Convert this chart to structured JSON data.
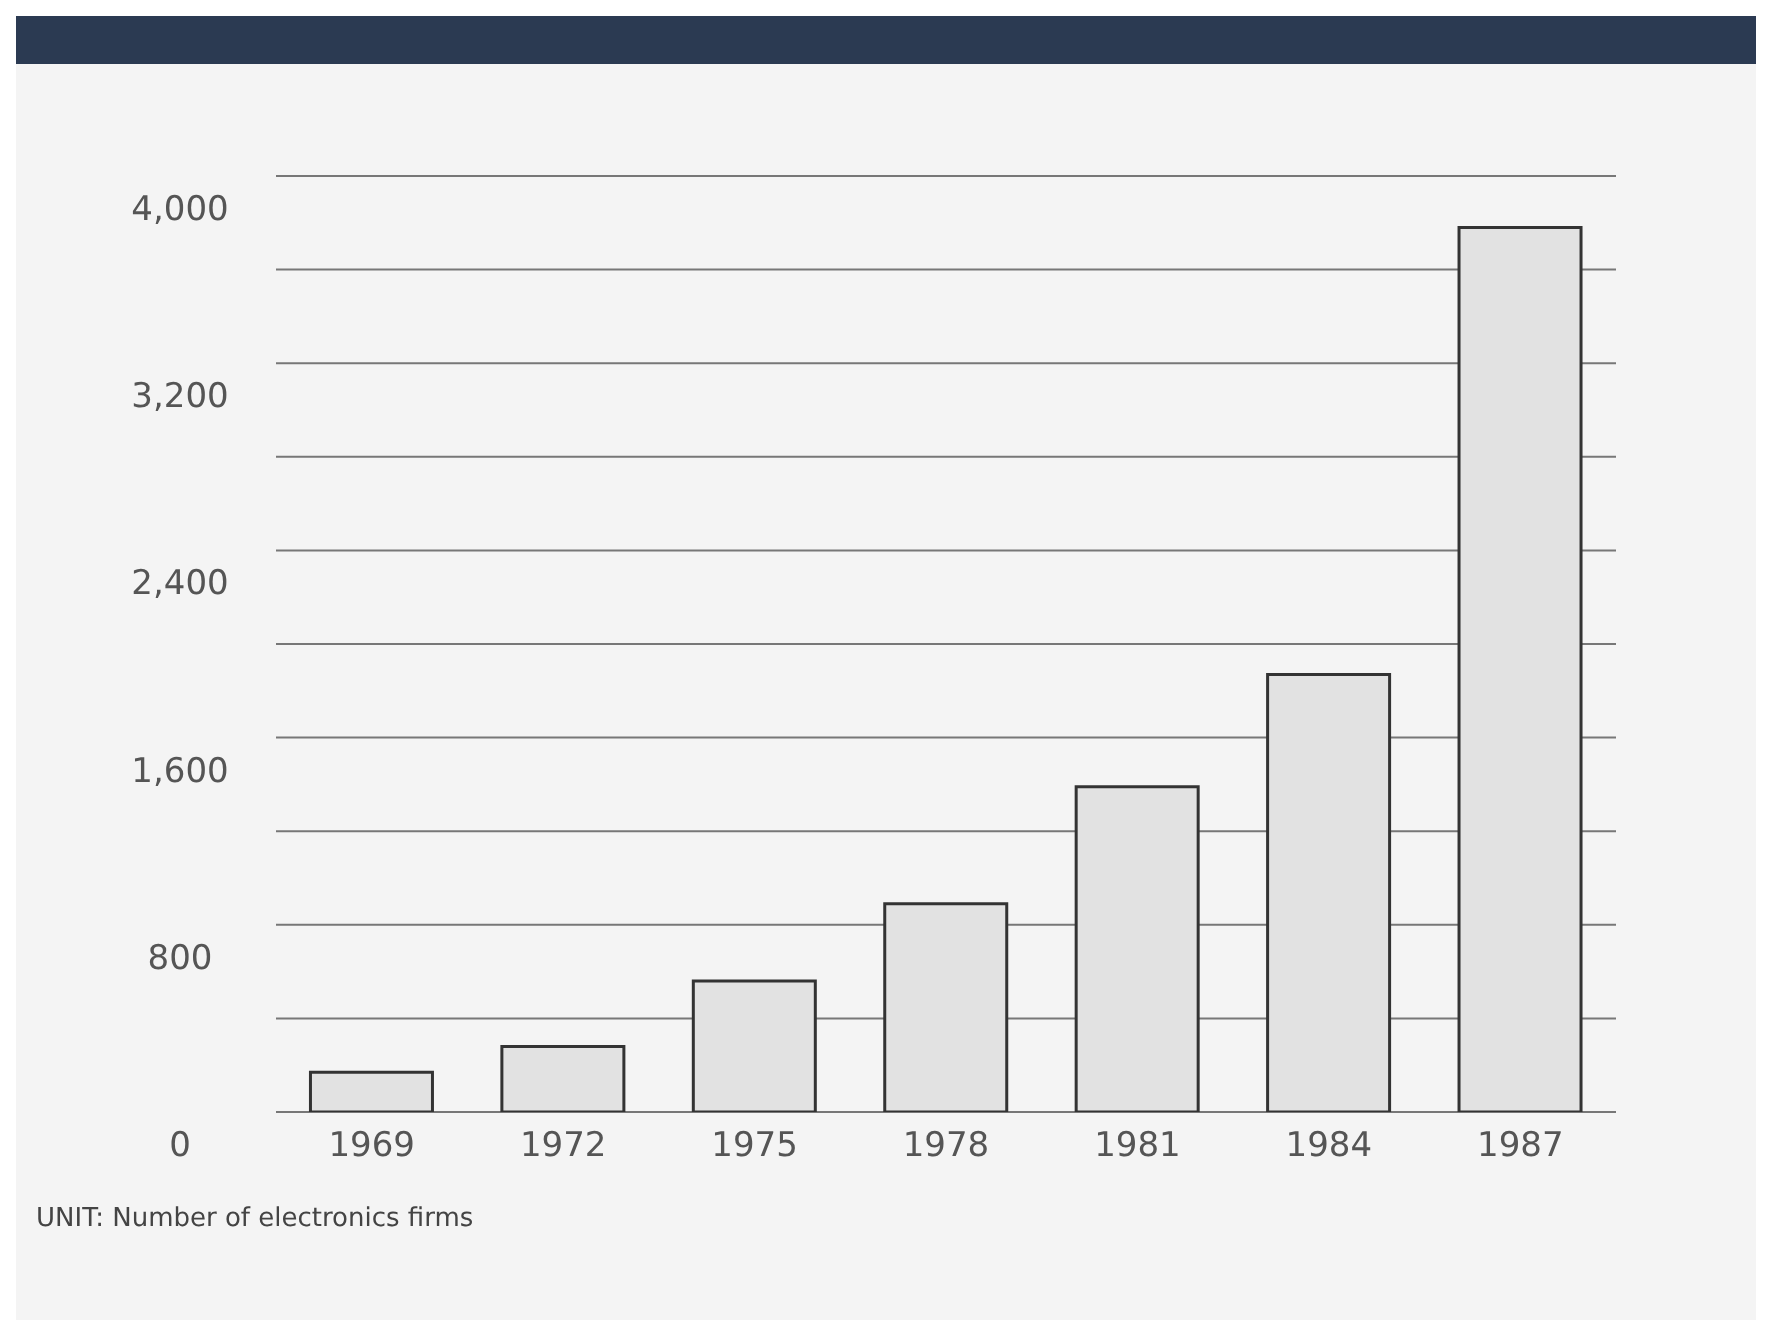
{
  "chart_data": {
    "type": "bar",
    "categories": [
      "1969",
      "1972",
      "1975",
      "1978",
      "1981",
      "1984",
      "1987"
    ],
    "values": [
      170,
      280,
      560,
      890,
      1390,
      1870,
      3780
    ],
    "color": "#e2e2e2",
    "ylim": [
      0,
      4000
    ],
    "yticks": [
      0,
      {
        "value": 400,
        "label": null
      },
      {
        "value": 800,
        "label": "800"
      },
      {
        "value": 1200,
        "label": null
      },
      {
        "value": 1600,
        "label": "1,600"
      },
      {
        "value": 2000,
        "label": null
      },
      {
        "value": 2400,
        "label": "2,400"
      },
      {
        "value": 2800,
        "label": null
      },
      {
        "value": 3200,
        "label": "3,200"
      },
      {
        "value": 3600,
        "label": null
      },
      {
        "value": 4000,
        "label": "4,000"
      }
    ],
    "grid": "y",
    "annotations": [
      "UNIT:  Number of electronics firms"
    ]
  }
}
